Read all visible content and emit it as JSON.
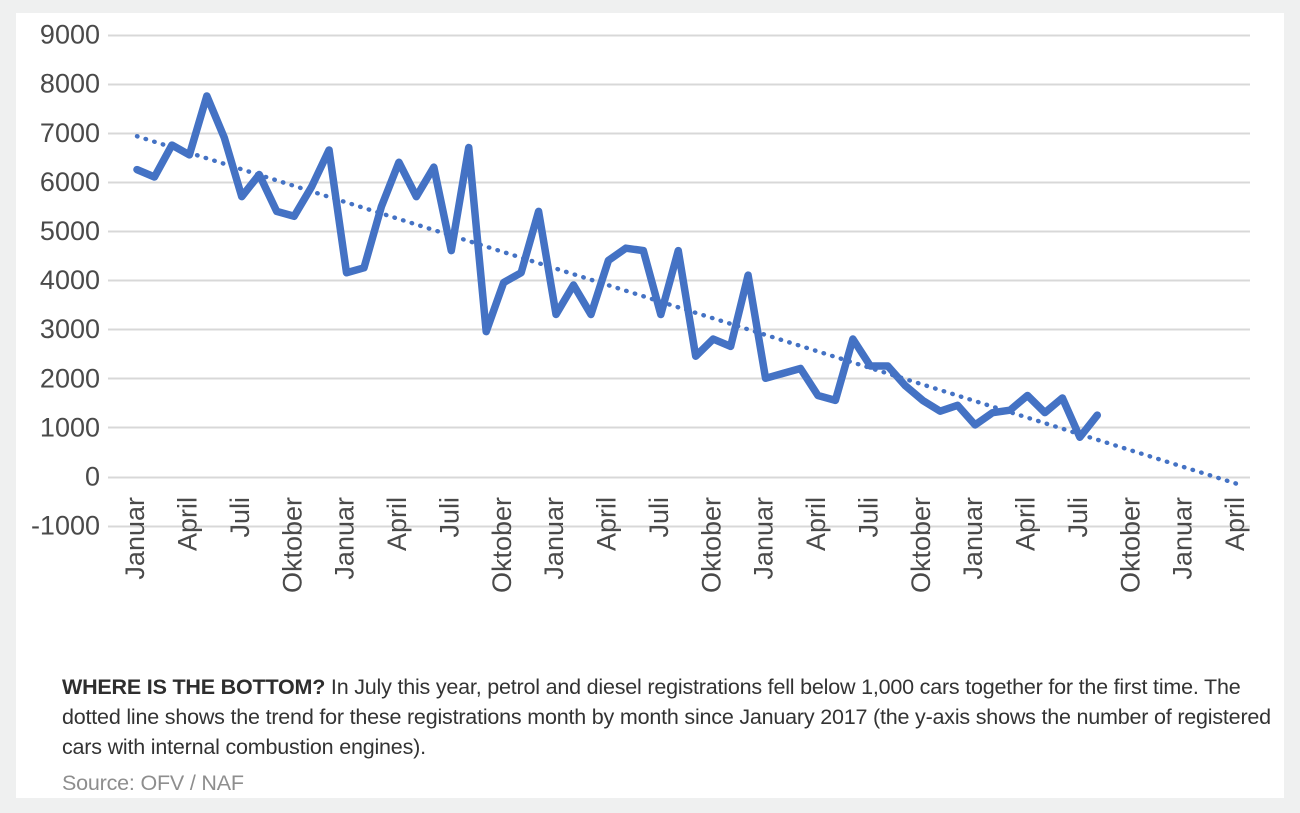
{
  "page": {
    "background_color": "#eff0f0",
    "card_color": "#ffffff",
    "gridline_color": "#d8d8d8",
    "axis_text_color": "#4a4a4a"
  },
  "caption": {
    "bold": "WHERE IS THE BOTTOM?",
    "text": " In July this year, petrol and diesel registrations fell below 1,000 cars together for the first time. The dotted line shows the trend for these registrations month by month since January 2017 (the y-axis shows the number of registered cars with internal combustion engines).",
    "source": "Source: OFV / NAF"
  },
  "chart_data": {
    "type": "line",
    "title": "",
    "xlabel": "",
    "ylabel": "",
    "ylim": [
      -1000,
      9000
    ],
    "y_step": 1000,
    "y_ticks": [
      9000,
      8000,
      7000,
      6000,
      5000,
      4000,
      3000,
      2000,
      1000,
      0,
      -1000
    ],
    "x_tick_month_interval": 3,
    "x_tick_labels": [
      "Januar",
      "April",
      "Juli",
      "Oktober",
      "Januar",
      "April",
      "Juli",
      "Oktober",
      "Januar",
      "April",
      "Juli",
      "Oktober",
      "Januar",
      "April",
      "Juli",
      "Oktober",
      "Januar",
      "April",
      "Juli",
      "Oktober",
      "Januar",
      "April"
    ],
    "x_start_label": "Januar",
    "grid": true,
    "legend": false,
    "series": [
      {
        "name": "petrol-diesel-registrations",
        "style": "solid",
        "color": "#4472c4",
        "start_month_index": 0,
        "values": [
          6250,
          6100,
          6750,
          6550,
          7750,
          6900,
          5700,
          6150,
          5400,
          5300,
          5900,
          6650,
          4150,
          4250,
          5500,
          6400,
          5700,
          6300,
          4600,
          6700,
          2950,
          3950,
          4150,
          5400,
          3300,
          3900,
          3300,
          4400,
          4650,
          4600,
          3300,
          4600,
          2450,
          2800,
          2650,
          4100,
          2000,
          2100,
          2200,
          1650,
          1550,
          2800,
          2250,
          2250,
          1850,
          1550,
          1330,
          1450,
          1050,
          1300,
          1350,
          1650,
          1300,
          1600,
          800,
          1250
        ]
      },
      {
        "name": "trend",
        "style": "dotted",
        "color": "#4472c4",
        "points": [
          {
            "month_index": 0,
            "value": 6930
          },
          {
            "month_index": 63,
            "value": -150
          }
        ]
      }
    ]
  }
}
